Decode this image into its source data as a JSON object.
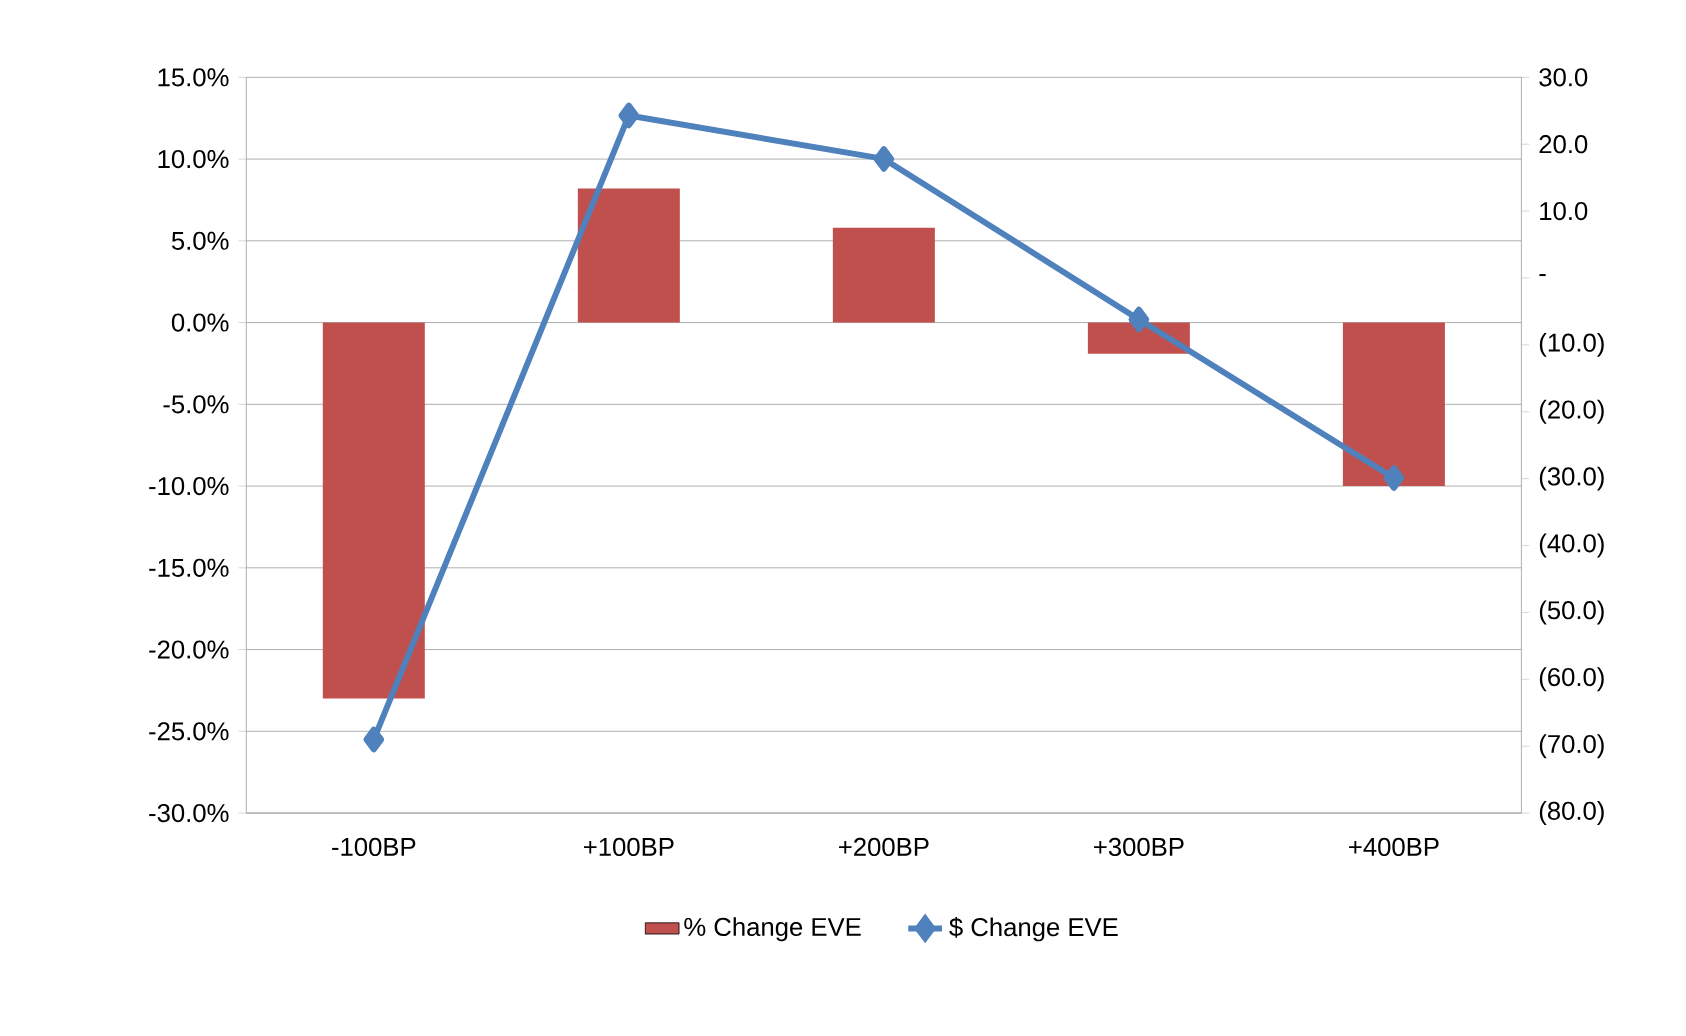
{
  "chart_data": {
    "type": "bar",
    "categories": [
      "-100BP",
      "+100BP",
      "+200BP",
      "+300BP",
      "+400BP"
    ],
    "series": [
      {
        "name": "% Change EVE",
        "color": "#c0504d",
        "values": [
          -23.0,
          8.2,
          5.8,
          -1.9,
          -10.0
        ]
      },
      {
        "name": "$ Change EVE",
        "type": "line",
        "axis": "y2",
        "color": "#4f81bd",
        "values": [
          -69.0,
          24.3,
          17.8,
          -6.2,
          -29.9
        ]
      }
    ],
    "ylim": [
      -30,
      15
    ],
    "yticks": [
      {
        "value": -30,
        "label": "-30.0%"
      },
      {
        "value": -25,
        "label": "-25.0%"
      },
      {
        "value": -20,
        "label": "-20.0%"
      },
      {
        "value": -15,
        "label": "-15.0%"
      },
      {
        "value": -10,
        "label": "-10.0%"
      },
      {
        "value": -5,
        "label": "-5.0%"
      },
      {
        "value": 0,
        "label": "0.0%"
      },
      {
        "value": 5,
        "label": "5.0%"
      },
      {
        "value": 10,
        "label": "10.0%"
      },
      {
        "value": 15,
        "label": "15.0%"
      }
    ],
    "y2lim": [
      -80,
      30
    ],
    "y2ticks": [
      {
        "value": -80,
        "label": "(80.0)"
      },
      {
        "value": -70,
        "label": "(70.0)"
      },
      {
        "value": -60,
        "label": "(60.0)"
      },
      {
        "value": -50,
        "label": "(50.0)"
      },
      {
        "value": -40,
        "label": "(40.0)"
      },
      {
        "value": -30,
        "label": "(30.0)"
      },
      {
        "value": -20,
        "label": "(20.0)"
      },
      {
        "value": -10,
        "label": "(10.0)"
      },
      {
        "value": 0,
        "label": "-"
      },
      {
        "value": 10,
        "label": "10.0"
      },
      {
        "value": 20,
        "label": "20.0"
      },
      {
        "value": 30,
        "label": "30.0"
      }
    ],
    "grid": "y",
    "legend": "bottom",
    "marker": "diamond"
  }
}
